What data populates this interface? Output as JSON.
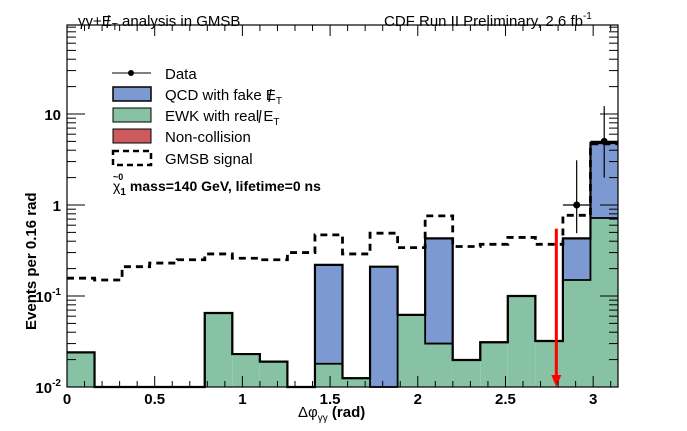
{
  "chart_data": {
    "type": "bar",
    "subtype": "stacked-histogram-log",
    "title_left": "γγ+E̸T analysis in GMSB",
    "title_left_parts": {
      "main": "γγ+",
      "met": "E",
      "sub": "T",
      "rest": " analysis in GMSB"
    },
    "title_right": "CDF Run II Preliminary, 2.6 fb",
    "title_right_sup": "-1",
    "xlabel_main": "Δφ",
    "xlabel_sub": "γγ",
    "xlabel_rest": " (rad)",
    "ylabel": "Events per 0.16 rad",
    "xlim": [
      0,
      3.1416
    ],
    "ylim": [
      0.01,
      95
    ],
    "yscale": "log",
    "x_ticks": [
      0,
      0.5,
      1,
      1.5,
      2,
      2.5,
      3
    ],
    "x_tick_labels": [
      "0",
      "0.5",
      "1",
      "1.5",
      "2",
      "2.5",
      "3"
    ],
    "y_ticks": [
      0.01,
      0.1,
      1,
      10
    ],
    "y_tick_labels": [
      {
        "base": "10",
        "sup": "-2"
      },
      {
        "base": "10",
        "sup": "-1"
      },
      {
        "base": "1",
        "sup": ""
      },
      {
        "base": "10",
        "sup": ""
      }
    ],
    "n_bins": 20,
    "bin_width": 0.1571,
    "series": [
      {
        "name": "EWK with real E̸T",
        "color": "#86c2a3",
        "values": [
          0.024,
          0,
          0,
          0,
          0,
          0.065,
          0.023,
          0.019,
          0,
          0.018,
          0.0125,
          0,
          0.062,
          0.03,
          0.0198,
          0.031,
          0.1,
          0.032,
          0.15,
          0.72
        ]
      },
      {
        "name": "QCD with fake E̸T",
        "color": "#7d99d1",
        "values": [
          0,
          0,
          0,
          0,
          0,
          0,
          0,
          0,
          0,
          0.202,
          0,
          0.21,
          0,
          0.4,
          0,
          0,
          0,
          0,
          0.28,
          4.08
        ]
      },
      {
        "name": "Non-collision",
        "color": "#cc5a5e",
        "values": [
          0,
          0,
          0,
          0,
          0,
          0,
          0,
          0,
          0,
          0,
          0,
          0,
          0,
          0,
          0,
          0,
          0,
          0,
          0,
          0
        ]
      },
      {
        "name": "GMSB signal",
        "style": "dashed",
        "values": [
          0.157,
          0.15,
          0.21,
          0.23,
          0.25,
          0.29,
          0.26,
          0.25,
          0.3,
          0.47,
          0.29,
          0.49,
          0.34,
          0.76,
          0.35,
          0.37,
          0.44,
          0.37,
          0.77,
          4.7
        ]
      }
    ],
    "data_points": [
      {
        "bin": 18,
        "x": 2.906,
        "y": 1.0,
        "err_low": 0.51,
        "err_high": 2.1
      },
      {
        "bin": 19,
        "x": 3.063,
        "y": 5.0,
        "err_low": 3.0,
        "err_high": 7.2
      }
    ],
    "cut_arrow": {
      "x": 2.79,
      "y_top": 0.55,
      "color": "#ff0000"
    },
    "legend": {
      "position": "top-left",
      "entries": [
        {
          "label": "Data",
          "kind": "marker"
        },
        {
          "label": "QCD with fake E",
          "sub": "T",
          "kind": "box",
          "color": "#7d99d1"
        },
        {
          "label": "EWK with real E",
          "sub": "T",
          "kind": "box",
          "color": "#86c2a3"
        },
        {
          "label": "Non-collision",
          "kind": "box",
          "color": "#cc5a5e"
        },
        {
          "label": "GMSB signal",
          "kind": "dashed"
        }
      ],
      "note_symbol": "χ",
      "note_sub": "1",
      "note_sup": "~0",
      "note_text": "mass=140 GeV, lifetime=0 ns"
    },
    "grid": false
  }
}
